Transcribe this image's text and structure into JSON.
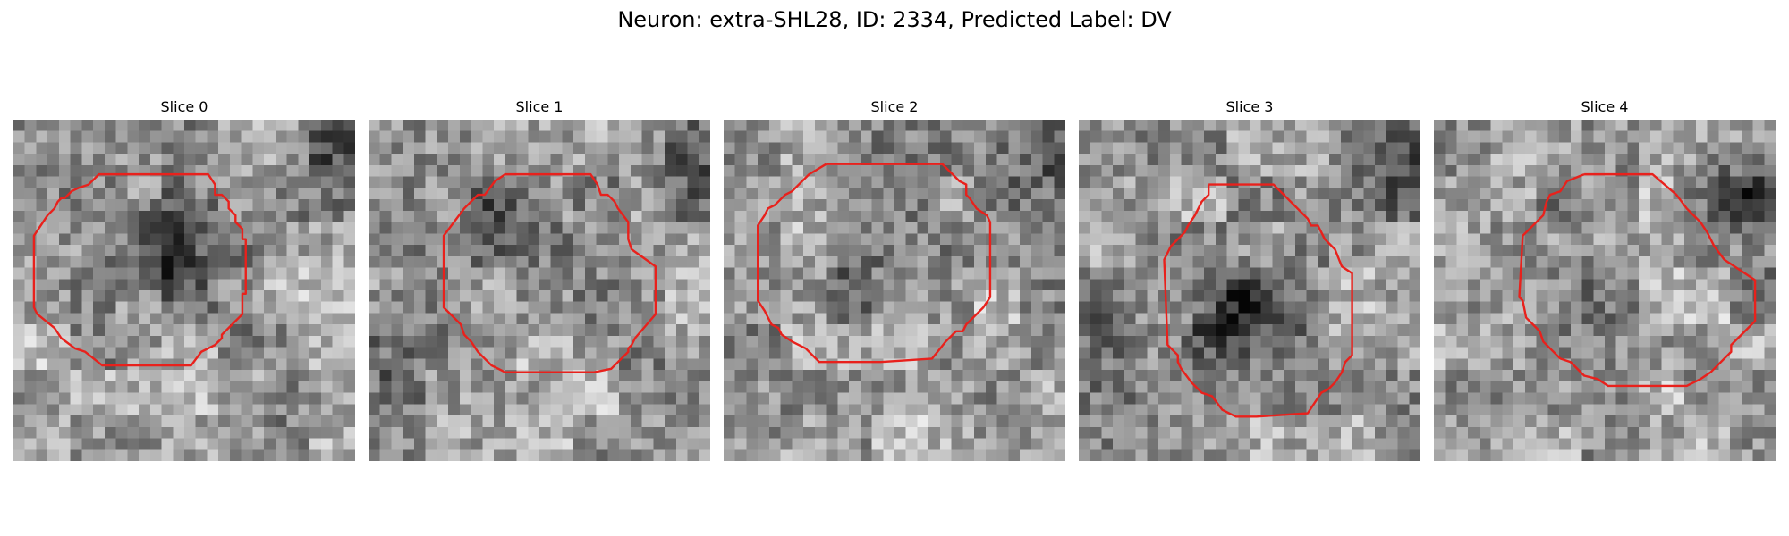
{
  "figure": {
    "title": "Neuron: extra-SHL28, ID: 2334, Predicted Label: DV"
  },
  "colors": {
    "contour": "#e8211c",
    "colormap": "gray"
  },
  "panels": [
    {
      "title": "Slice 0",
      "texture_seed": 11,
      "dark_center": [
        0.43,
        0.35
      ],
      "dark_strength": 0.45,
      "dark_corners": [
        "top-right"
      ],
      "contour": [
        [
          0.4,
          0.16
        ],
        [
          0.57,
          0.16
        ],
        [
          0.59,
          0.19
        ],
        [
          0.59,
          0.22
        ],
        [
          0.61,
          0.22
        ],
        [
          0.63,
          0.24
        ],
        [
          0.63,
          0.26
        ],
        [
          0.65,
          0.28
        ],
        [
          0.65,
          0.3
        ],
        [
          0.67,
          0.32
        ],
        [
          0.67,
          0.35
        ],
        [
          0.68,
          0.35
        ],
        [
          0.68,
          0.43
        ],
        [
          0.68,
          0.51
        ],
        [
          0.67,
          0.51
        ],
        [
          0.67,
          0.57
        ],
        [
          0.61,
          0.63
        ],
        [
          0.61,
          0.64
        ],
        [
          0.59,
          0.66
        ],
        [
          0.55,
          0.68
        ],
        [
          0.52,
          0.72
        ],
        [
          0.26,
          0.72
        ],
        [
          0.21,
          0.68
        ],
        [
          0.18,
          0.67
        ],
        [
          0.14,
          0.64
        ],
        [
          0.12,
          0.61
        ],
        [
          0.07,
          0.57
        ],
        [
          0.06,
          0.55
        ],
        [
          0.06,
          0.34
        ],
        [
          0.1,
          0.28
        ],
        [
          0.12,
          0.26
        ],
        [
          0.13,
          0.24
        ],
        [
          0.14,
          0.23
        ],
        [
          0.15,
          0.23
        ],
        [
          0.17,
          0.21
        ],
        [
          0.19,
          0.2
        ],
        [
          0.22,
          0.19
        ],
        [
          0.25,
          0.16
        ],
        [
          0.4,
          0.16
        ]
      ]
    },
    {
      "title": "Slice 1",
      "texture_seed": 23,
      "dark_center": [
        0.32,
        0.28
      ],
      "dark_strength": 0.25,
      "dark_corners": [
        "top-right",
        "left"
      ],
      "contour": [
        [
          0.4,
          0.16
        ],
        [
          0.65,
          0.16
        ],
        [
          0.67,
          0.19
        ],
        [
          0.68,
          0.22
        ],
        [
          0.7,
          0.22
        ],
        [
          0.72,
          0.24
        ],
        [
          0.73,
          0.26
        ],
        [
          0.76,
          0.3
        ],
        [
          0.76,
          0.35
        ],
        [
          0.77,
          0.38
        ],
        [
          0.84,
          0.43
        ],
        [
          0.84,
          0.57
        ],
        [
          0.78,
          0.64
        ],
        [
          0.77,
          0.66
        ],
        [
          0.76,
          0.67
        ],
        [
          0.76,
          0.68
        ],
        [
          0.72,
          0.72
        ],
        [
          0.71,
          0.73
        ],
        [
          0.66,
          0.74
        ],
        [
          0.4,
          0.74
        ],
        [
          0.38,
          0.73
        ],
        [
          0.36,
          0.72
        ],
        [
          0.32,
          0.68
        ],
        [
          0.3,
          0.65
        ],
        [
          0.28,
          0.63
        ],
        [
          0.27,
          0.6
        ],
        [
          0.22,
          0.55
        ],
        [
          0.22,
          0.34
        ],
        [
          0.25,
          0.3
        ],
        [
          0.28,
          0.26
        ],
        [
          0.31,
          0.23
        ],
        [
          0.32,
          0.22
        ],
        [
          0.34,
          0.22
        ],
        [
          0.37,
          0.18
        ],
        [
          0.4,
          0.16
        ]
      ]
    },
    {
      "title": "Slice 2",
      "texture_seed": 37,
      "dark_center": [
        0.42,
        0.42
      ],
      "dark_strength": 0.2,
      "dark_corners": [
        "top-right"
      ],
      "contour": [
        [
          0.3,
          0.13
        ],
        [
          0.64,
          0.13
        ],
        [
          0.69,
          0.18
        ],
        [
          0.71,
          0.19
        ],
        [
          0.71,
          0.22
        ],
        [
          0.72,
          0.23
        ],
        [
          0.74,
          0.26
        ],
        [
          0.77,
          0.28
        ],
        [
          0.78,
          0.3
        ],
        [
          0.78,
          0.52
        ],
        [
          0.76,
          0.55
        ],
        [
          0.73,
          0.58
        ],
        [
          0.71,
          0.6
        ],
        [
          0.7,
          0.62
        ],
        [
          0.68,
          0.62
        ],
        [
          0.65,
          0.65
        ],
        [
          0.61,
          0.7
        ],
        [
          0.46,
          0.71
        ],
        [
          0.28,
          0.71
        ],
        [
          0.24,
          0.67
        ],
        [
          0.2,
          0.65
        ],
        [
          0.17,
          0.63
        ],
        [
          0.16,
          0.61
        ],
        [
          0.14,
          0.6
        ],
        [
          0.12,
          0.56
        ],
        [
          0.1,
          0.53
        ],
        [
          0.1,
          0.31
        ],
        [
          0.12,
          0.28
        ],
        [
          0.13,
          0.26
        ],
        [
          0.15,
          0.25
        ],
        [
          0.16,
          0.24
        ],
        [
          0.18,
          0.22
        ],
        [
          0.2,
          0.21
        ],
        [
          0.22,
          0.19
        ],
        [
          0.25,
          0.16
        ],
        [
          0.3,
          0.13
        ]
      ]
    },
    {
      "title": "Slice 3",
      "texture_seed": 53,
      "dark_center": [
        0.45,
        0.55
      ],
      "dark_strength": 0.45,
      "dark_corners": [
        "top-right",
        "left"
      ],
      "contour": [
        [
          0.38,
          0.19
        ],
        [
          0.57,
          0.19
        ],
        [
          0.63,
          0.25
        ],
        [
          0.67,
          0.29
        ],
        [
          0.68,
          0.31
        ],
        [
          0.7,
          0.31
        ],
        [
          0.72,
          0.35
        ],
        [
          0.75,
          0.38
        ],
        [
          0.77,
          0.43
        ],
        [
          0.8,
          0.45
        ],
        [
          0.8,
          0.69
        ],
        [
          0.78,
          0.71
        ],
        [
          0.77,
          0.74
        ],
        [
          0.75,
          0.77
        ],
        [
          0.73,
          0.79
        ],
        [
          0.71,
          0.8
        ],
        [
          0.69,
          0.83
        ],
        [
          0.67,
          0.86
        ],
        [
          0.52,
          0.87
        ],
        [
          0.46,
          0.87
        ],
        [
          0.42,
          0.85
        ],
        [
          0.39,
          0.81
        ],
        [
          0.36,
          0.8
        ],
        [
          0.33,
          0.77
        ],
        [
          0.3,
          0.73
        ],
        [
          0.29,
          0.71
        ],
        [
          0.29,
          0.69
        ],
        [
          0.26,
          0.66
        ],
        [
          0.25,
          0.41
        ],
        [
          0.27,
          0.37
        ],
        [
          0.29,
          0.35
        ],
        [
          0.31,
          0.33
        ],
        [
          0.32,
          0.31
        ],
        [
          0.34,
          0.28
        ],
        [
          0.36,
          0.24
        ],
        [
          0.38,
          0.22
        ],
        [
          0.38,
          0.19
        ]
      ]
    },
    {
      "title": "Slice 4",
      "texture_seed": 71,
      "dark_center": [
        0.4,
        0.45
      ],
      "dark_strength": 0.1,
      "dark_corners": [
        "top-right-strong"
      ],
      "contour": [
        [
          0.44,
          0.16
        ],
        [
          0.64,
          0.16
        ],
        [
          0.71,
          0.22
        ],
        [
          0.74,
          0.26
        ],
        [
          0.78,
          0.3
        ],
        [
          0.8,
          0.33
        ],
        [
          0.82,
          0.37
        ],
        [
          0.85,
          0.41
        ],
        [
          0.94,
          0.47
        ],
        [
          0.94,
          0.59
        ],
        [
          0.91,
          0.62
        ],
        [
          0.87,
          0.66
        ],
        [
          0.87,
          0.68
        ],
        [
          0.86,
          0.69
        ],
        [
          0.85,
          0.7
        ],
        [
          0.83,
          0.72
        ],
        [
          0.81,
          0.74
        ],
        [
          0.78,
          0.76
        ],
        [
          0.74,
          0.78
        ],
        [
          0.7,
          0.78
        ],
        [
          0.51,
          0.78
        ],
        [
          0.48,
          0.76
        ],
        [
          0.44,
          0.75
        ],
        [
          0.4,
          0.71
        ],
        [
          0.37,
          0.7
        ],
        [
          0.34,
          0.67
        ],
        [
          0.32,
          0.65
        ],
        [
          0.31,
          0.62
        ],
        [
          0.27,
          0.58
        ],
        [
          0.26,
          0.53
        ],
        [
          0.25,
          0.52
        ],
        [
          0.26,
          0.34
        ],
        [
          0.29,
          0.31
        ],
        [
          0.32,
          0.28
        ],
        [
          0.33,
          0.24
        ],
        [
          0.34,
          0.22
        ],
        [
          0.37,
          0.21
        ],
        [
          0.39,
          0.18
        ],
        [
          0.44,
          0.16
        ]
      ]
    }
  ]
}
